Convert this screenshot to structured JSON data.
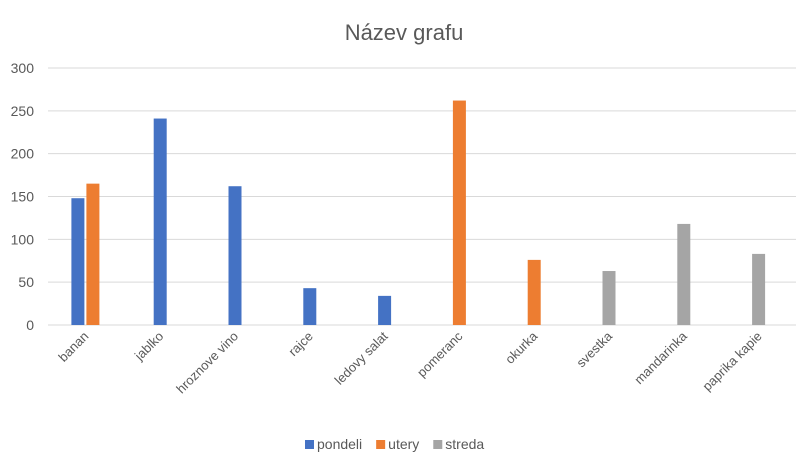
{
  "chart_data": {
    "type": "bar",
    "title": "Název grafu",
    "xlabel": "",
    "ylabel": "",
    "ylim": [
      0,
      300
    ],
    "yticks": [
      0,
      50,
      100,
      150,
      200,
      250,
      300
    ],
    "grid": true,
    "legend_position": "bottom",
    "categories": [
      "banan",
      "jablko",
      "hroznove vino",
      "rajce",
      "ledovy salat",
      "pomeranc",
      "okurka",
      "svestka",
      "mandarinka",
      "paprika kapie"
    ],
    "series": [
      {
        "name": "pondeli",
        "color": "#4472C4",
        "values": [
          148,
          241,
          162,
          43,
          34,
          null,
          null,
          null,
          null,
          null
        ]
      },
      {
        "name": "utery",
        "color": "#ED7D31",
        "values": [
          165,
          null,
          null,
          null,
          null,
          262,
          76,
          null,
          null,
          null
        ]
      },
      {
        "name": "streda",
        "color": "#A5A5A5",
        "values": [
          null,
          null,
          null,
          null,
          null,
          null,
          null,
          63,
          118,
          83
        ]
      }
    ]
  }
}
